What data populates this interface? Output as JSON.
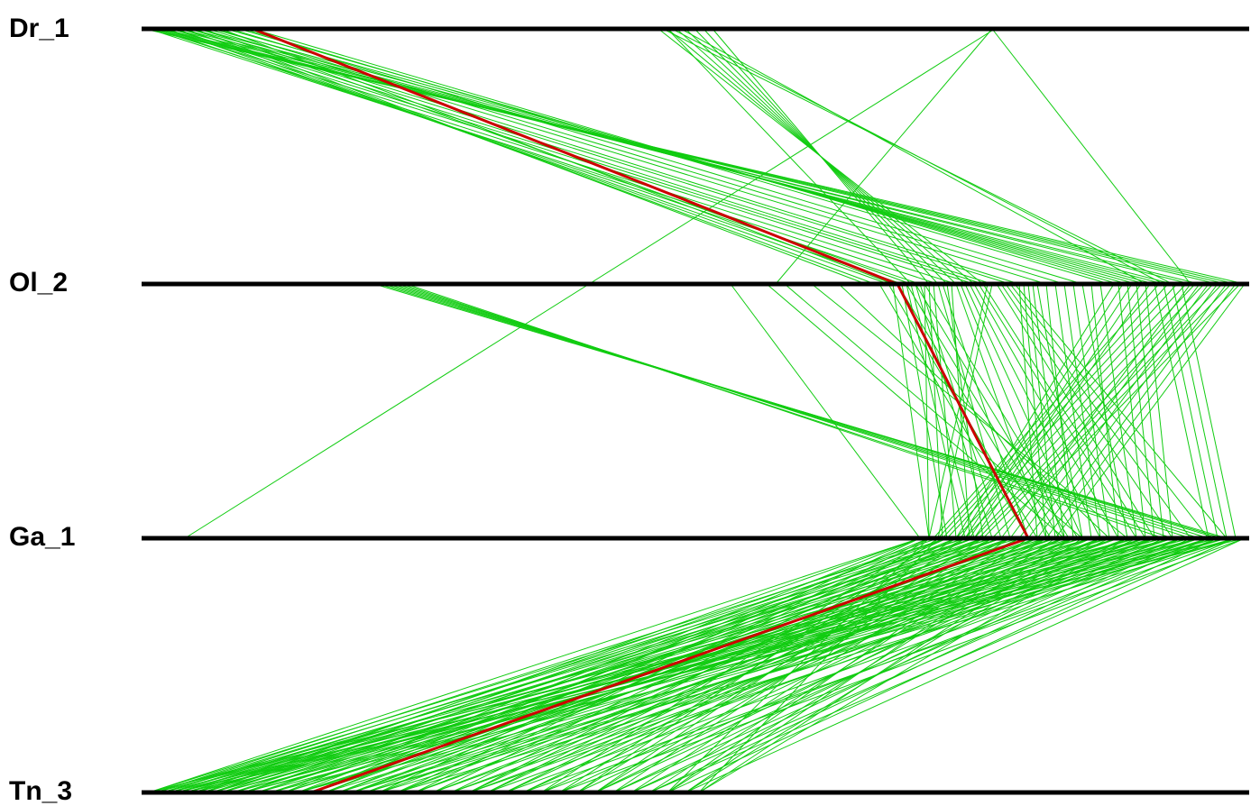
{
  "tracks": [
    {
      "label": "Dr_1"
    },
    {
      "label": "Ol_2"
    },
    {
      "label": "Ga_1"
    },
    {
      "label": "Tn_3"
    }
  ],
  "colors": {
    "track": "#000000",
    "link": "#11cc11",
    "highlight": "#cc0000",
    "background": "#ffffff"
  }
}
